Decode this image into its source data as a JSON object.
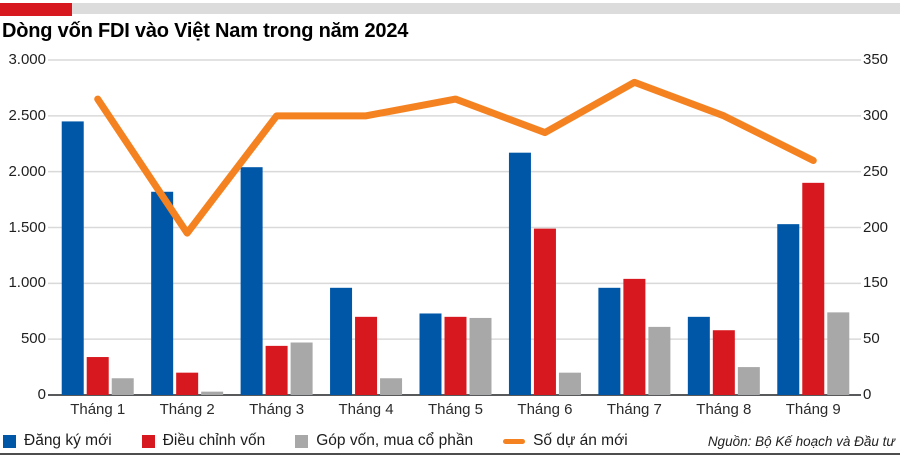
{
  "title": "Dòng vốn FDI vào Việt Nam trong năm 2024",
  "source": "Nguồn: Bộ Kế hoạch và Đầu tư",
  "header": {
    "accent_color": "#d7191f",
    "strip_color": "#dcdcdc"
  },
  "legend": [
    {
      "label": "Đăng ký mới",
      "color": "#0057a8",
      "swatch": "square"
    },
    {
      "label": "Điều chỉnh vốn",
      "color": "#d7191f",
      "swatch": "square"
    },
    {
      "label": "Góp vốn, mua cổ phần",
      "color": "#a8a8a8",
      "swatch": "square"
    },
    {
      "label": "Số dự án mới",
      "color": "#f58220",
      "swatch": "line"
    }
  ],
  "chart_data": {
    "type": "bar",
    "subtype": "grouped-bars-with-line",
    "categories": [
      "Tháng 1",
      "Tháng 2",
      "Tháng 3",
      "Tháng 4",
      "Tháng 5",
      "Tháng 6",
      "Tháng 7",
      "Tháng 8",
      "Tháng 9"
    ],
    "series": [
      {
        "name": "Đăng ký mới",
        "type": "bar",
        "axis": "left",
        "color": "#0057a8",
        "values": [
          2450,
          1820,
          2040,
          960,
          730,
          2170,
          960,
          700,
          1530
        ]
      },
      {
        "name": "Điều chỉnh vốn",
        "type": "bar",
        "axis": "left",
        "color": "#d7191f",
        "values": [
          340,
          200,
          440,
          700,
          700,
          1490,
          1040,
          580,
          1900
        ]
      },
      {
        "name": "Góp vốn, mua cổ phần",
        "type": "bar",
        "axis": "left",
        "color": "#a8a8a8",
        "values": [
          150,
          30,
          470,
          150,
          690,
          200,
          610,
          250,
          740
        ]
      },
      {
        "name": "Số dự án mới",
        "type": "line",
        "axis": "right",
        "color": "#f58220",
        "values": [
          315,
          195,
          300,
          300,
          315,
          285,
          330,
          300,
          260
        ]
      }
    ],
    "left_axis": {
      "tick_labels_top_to_bottom": [
        "3.000",
        "2.500",
        "2.000",
        "1.500",
        "1.000",
        "500",
        "0"
      ],
      "min": 0,
      "max": 3000
    },
    "right_axis": {
      "tick_labels_top_to_bottom": [
        "350",
        "300",
        "250",
        "200",
        "150",
        "50",
        "0"
      ]
    },
    "grid": true,
    "gridline_color": "#d9d9d9",
    "baseline_color": "#58595b",
    "legend_position": "bottom"
  }
}
